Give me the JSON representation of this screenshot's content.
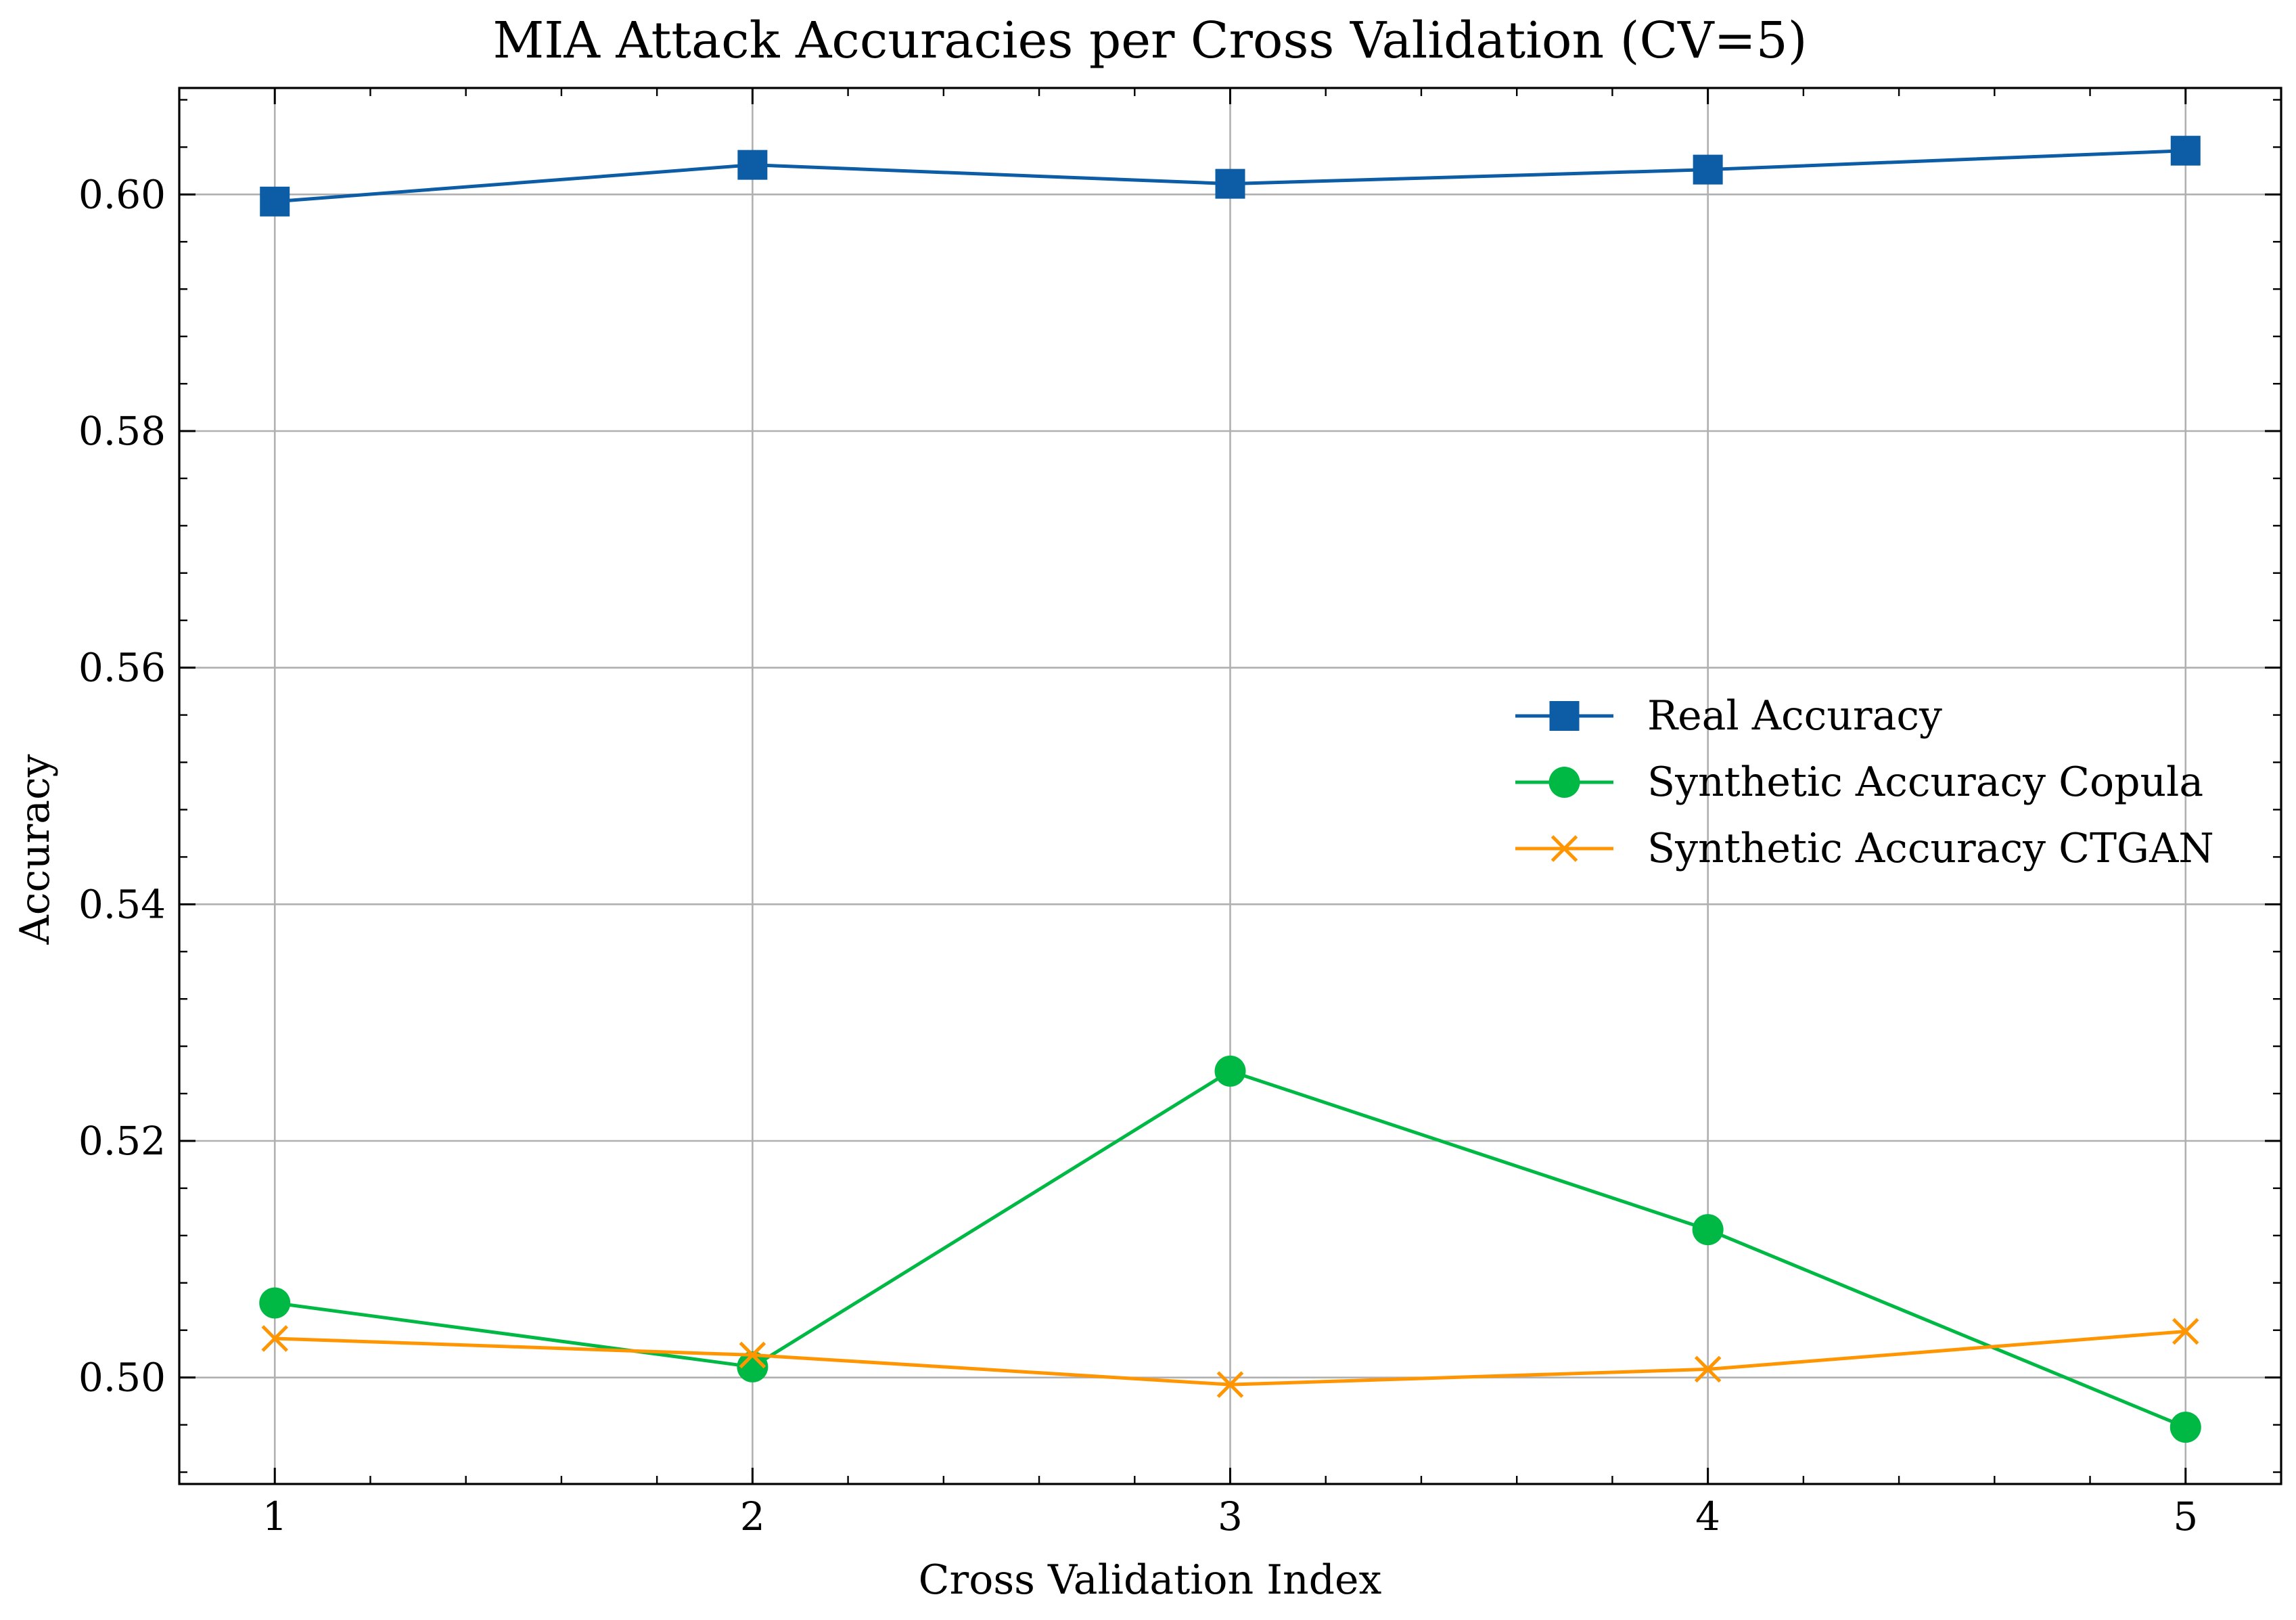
{
  "chart_data": {
    "type": "line",
    "title": "MIA Attack Accuracies per Cross Validation (CV=5)",
    "xlabel": "Cross Validation Index",
    "ylabel": "Accuracy",
    "x": [
      1,
      2,
      3,
      4,
      5
    ],
    "x_tick_labels": [
      "1",
      "2",
      "3",
      "4",
      "5"
    ],
    "xlim": [
      0.8,
      5.2
    ],
    "ylim": [
      0.491,
      0.609
    ],
    "y_ticks": [
      0.5,
      0.52,
      0.54,
      0.56,
      0.58,
      0.6
    ],
    "y_tick_labels": [
      "0.50",
      "0.52",
      "0.54",
      "0.56",
      "0.58",
      "0.60"
    ],
    "grid": true,
    "legend_position": "center-right",
    "series": [
      {
        "name": "Real Accuracy",
        "color": "#0C5DA5",
        "marker": "square",
        "values": [
          0.5994,
          0.6025,
          0.6009,
          0.6021,
          0.6037
        ]
      },
      {
        "name": "Synthetic Accuracy Copula",
        "color": "#00B945",
        "marker": "circle",
        "values": [
          0.5063,
          0.5009,
          0.5259,
          0.5125,
          0.4958
        ]
      },
      {
        "name": "Synthetic Accuracy CTGAN",
        "color": "#FF9500",
        "marker": "x",
        "values": [
          0.5033,
          0.5019,
          0.4994,
          0.5007,
          0.5039
        ]
      }
    ]
  }
}
